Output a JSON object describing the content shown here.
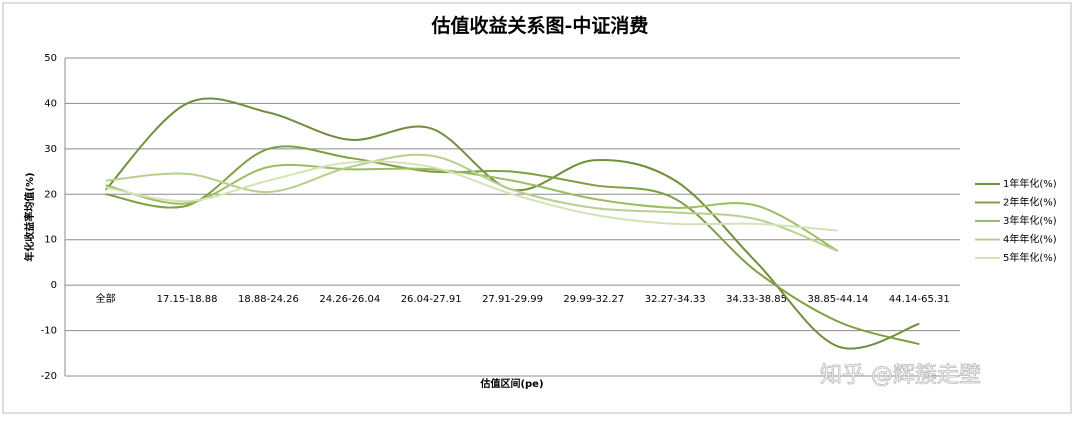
{
  "chart_data": {
    "type": "line",
    "title": "估值收益关系图-中证消费",
    "x_label": "估值区间(pe)",
    "y_label": "年化收益率均值(%)",
    "categories": [
      "全部",
      "17.15-18.88",
      "18.88-24.26",
      "24.26-26.04",
      "26.04-27.91",
      "27.91-29.99",
      "29.99-32.27",
      "32.27-34.33",
      "34.33-38.85",
      "38.85-44.14",
      "44.14-65.31"
    ],
    "series": [
      {
        "name": "1年年化(%)",
        "color": "#6f8f3e",
        "values": [
          21,
          40,
          38,
          32,
          34.5,
          21,
          27.5,
          23,
          5,
          -13.5,
          -8.5
        ]
      },
      {
        "name": "2年年化(%)",
        "color": "#7f9f45",
        "values": [
          20,
          17.5,
          30,
          28,
          25,
          25,
          22,
          19,
          3,
          -8,
          -13
        ]
      },
      {
        "name": "3年年化(%)",
        "color": "#9bbd5f",
        "values": [
          22,
          18,
          26,
          25.5,
          25.5,
          23,
          19,
          17,
          17.5,
          7.5,
          null
        ]
      },
      {
        "name": "4年年化(%)",
        "color": "#b7d08e",
        "values": [
          23,
          24.5,
          20.5,
          26,
          28.5,
          21,
          17,
          16,
          14.5,
          7.5,
          null
        ]
      },
      {
        "name": "5年年化(%)",
        "color": "#d3e3b8",
        "values": [
          21.5,
          18.5,
          23,
          27,
          26,
          20,
          15.5,
          13.5,
          13.5,
          12,
          null
        ]
      }
    ],
    "ylim": [
      -20,
      50
    ],
    "yticks": [
      -20,
      -10,
      0,
      10,
      20,
      30,
      40,
      50
    ],
    "grid": true,
    "legend": "right",
    "smooth": true,
    "watermark": "知乎 @辉簇走壁"
  }
}
